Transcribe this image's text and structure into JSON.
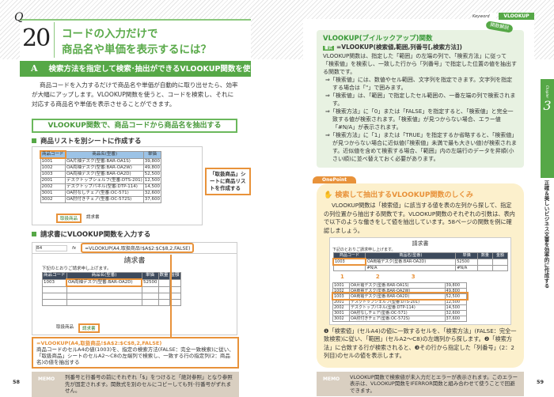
{
  "left_page": {
    "q_label": "Q",
    "q_number": "20",
    "title_line1": "コードの入力だけで",
    "title_line2": "商品名や単価を表示するには？",
    "answer_label": "A",
    "answer": "検索方法を指定して検索･抽出ができるVLOOKUP関数を使おう",
    "intro": "商品コードを入力するだけで商品名や単価が自動的に取り出せたら、効率が大幅にアップします。VLOOKUP関数を使うと、コードを検索し、それに対応する商品名や単価を表示させることができます。",
    "box_heading": "VLOOKUP関数で、商品コードから商品名を抽出する",
    "step1": "商品リストを別シートに作成する",
    "sheet1": {
      "cols": [
        "",
        "A",
        "B",
        "C",
        "D",
        "E"
      ],
      "headers": [
        "商品コード",
        "商品名(型番)",
        "単価"
      ],
      "rows": [
        [
          "1001",
          "OA片袖デスク(型番:BAR-OA1S)",
          "39,800"
        ],
        [
          "1002",
          "OA両袖デスク(型番:BAR-OA2W)",
          "49,800"
        ],
        [
          "1003",
          "OA両袖デスク(型番:BAR-OA2D)",
          "52,500"
        ],
        [
          "2001",
          "デスクトップシェルフ(型番:DTS-201)",
          "12,500"
        ],
        [
          "2002",
          "デスクトップパネル(型番:DTP-114)",
          "14,500"
        ],
        [
          "3001",
          "OA肘なしチェア(型番:OC-571)",
          "32,600"
        ],
        [
          "3002",
          "OA肘付きチェア(型番:OC-572S)",
          "37,600"
        ]
      ],
      "tabs": [
        "取扱商品",
        "請求書"
      ]
    },
    "callout1": "「取扱商品」シートに商品リストを作成する",
    "step2": "請求書にVLOOKUP関数を入力する",
    "sheet2": {
      "cell_ref": "B4",
      "fx": "fx",
      "formula": "=VLOOKUP(A4,取扱商品!$A$2:$C$8,2,FALSE)",
      "cols": [
        "",
        "A",
        "B",
        "C",
        "D",
        "E",
        "F"
      ],
      "title": "請求書",
      "note": "下記のとおりご請求申し上げます。",
      "headers": [
        "商品コード",
        "商品名(型番)",
        "単価",
        "数量",
        "金額"
      ],
      "row4": [
        "1003",
        "OA両袖デスク(型番:BAR-OA2D)",
        "52500",
        "",
        ""
      ],
      "tabs": [
        "取扱商品",
        "請求書"
      ]
    },
    "formula_box_title": "=VLOOKUP(A4,取扱商品!$A$2:$C$8,2,FALSE)",
    "formula_box_text": "商品コードのセルA4の値(1003)を、指定の検索方法(FALSE：完全一致検索)に従い、「取扱商品」シートのセルA2～C8の左端列で検索し、一致する行の指定列(2：商品名)の値を抽出する",
    "memo_label": "MEMO",
    "memo": "列番号と行番号の前にそれぞれ「$」をつけると「絶対参照」となり参照先が固定されます。関数式を別のセルにコピーしても列･行番号がずれません。",
    "page_number": "58"
  },
  "right_page": {
    "keyword_label": "Keyword",
    "keyword": "VLOOKUP",
    "func_title": "VLOOKUP(ブイルックアップ)関数",
    "func_badge": "関数解説",
    "format_label": "書式",
    "syntax": "=VLOOKUP(検索値,範囲,列番号[,検索方法])",
    "desc": "VLOOKUP関数は、指定した「範囲」の左端の列で、「検索方法」に従って「検索値」を検索し、一致した行から「列番号」で指定した位置の値を抽出する関数です。",
    "bullets": [
      "「検索値」には、数値やセル範囲、文字列を指定できます。文字列を指定する場合は「\"」で囲みます。",
      "「検索値」は、「範囲」で指定したセル範囲の、一番左端の列で検索されます。",
      "「検索方法」に「0」または「FALSE」を指定すると、「検索値」と完全一致する値が検索されます。「検索値」が見つからない場合、エラー値「#N/A」が表示されます。",
      "「検索方法」に「1」または「TRUE」を指定するか省略すると、「検索値」が見つからない場合に近似値(「検索値」未満で最も大きい値)が検索されます。近似値を含めて検索する場合、「範囲」内の左端行のデータを昇順(小さい順)に並べ替えておく必要があります。"
    ],
    "onepoint_label": "OnePoint",
    "onepoint_title": "検索して抽出するVLOOKUP関数のしくみ",
    "onepoint_text": "VLOOKUP関数は「検索値」に該当する値を表の左列から探して、指定の列位置から抽出する関数です。VLOOKUP関数のそれぞれの引数は、表内で以下のような働きをして値を抽出しています。58ページの関数を例に確認しましょう。",
    "mini_invoice": {
      "title": "請求書",
      "note": "下記のとおりご請求申し上げます。",
      "headers": [
        "商品コード",
        "商品名(型番)",
        "単価",
        "数量",
        "金額"
      ],
      "row4": [
        "1003",
        "OA両袖デスク(型番:BAR-OA2D)",
        "52500"
      ],
      "na": "#N/A"
    },
    "markers": [
      "1",
      "2",
      "3"
    ],
    "explanation": "❶「検索値」(セルA4)の値に一致するセルを、「検索方法」(FALSE：完全一致検索)に従い、「範囲」(セルA2～C8)の左端列から探します。❷「検索方法」に合致する行が検索されると、❸その行から指定した「列番号」(2：2列目)のセルの値を表示します。",
    "memo_label": "MEMO",
    "memo": "VLOOKUP関数で検索値が未入力だとエラーが表示されます。このエラー表示は、VLOOKUP関数をIFERROR関数と組み合わせて使うことで回避できます。",
    "chapter_label": "Chapter",
    "chapter_number": "3",
    "chapter_title": "正確＆美しいビジネス文書を効率的に作成する",
    "page_number": "59"
  },
  "colors": {
    "green": "#56a847",
    "orange": "#e8923a",
    "memo_bg": "#d9cfc1",
    "onepoint_bg": "#fcf0cc",
    "func_bg": "#e8f2e2"
  }
}
